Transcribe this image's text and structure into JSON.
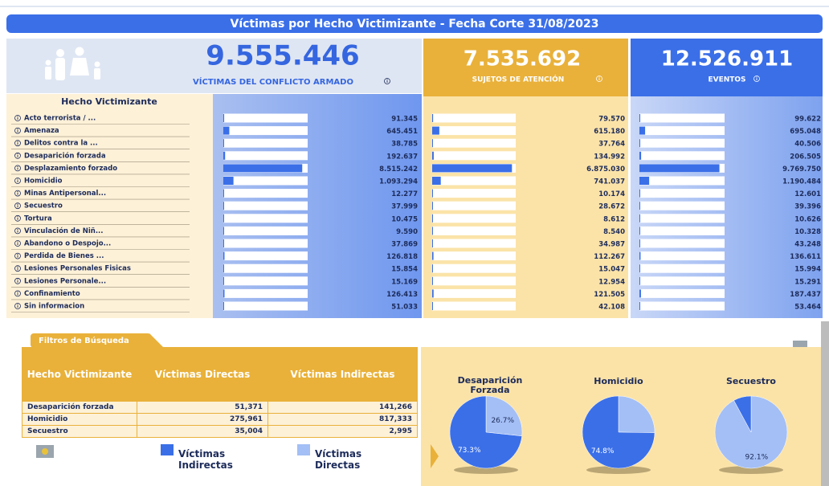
{
  "header": {
    "title": "Víctimas por Hecho Victimizante - Fecha Corte 31/08/2023"
  },
  "kpis": [
    {
      "value": "9.555.446",
      "label": "VÍCTIMAS DEL CONFLICTO ARMADO"
    },
    {
      "value": "7.535.692",
      "label": "SUJETOS DE ATENCIÓN"
    },
    {
      "value": "12.526.911",
      "label": "EVENTOS"
    }
  ],
  "chart_data": [
    {
      "type": "bar",
      "category_header": "Hecho Victimizante",
      "categories": [
        "Acto terrorista / ...",
        "Amenaza",
        "Delitos contra la ...",
        "Desaparición forzada",
        "Desplazamiento forzado",
        "Homicidio",
        "Minas Antipersonal...",
        "Secuestro",
        "Tortura",
        "Vinculación de Niñ...",
        "Abandono o Despojo...",
        "Perdida de Bienes ...",
        "Lesiones Personales Fisicas",
        "Lesiones Personale...",
        "Confinamiento",
        "Sin informacion"
      ],
      "values": [
        91345,
        645451,
        38785,
        192637,
        8515242,
        1093294,
        12277,
        37999,
        10475,
        9590,
        37869,
        126818,
        15854,
        15169,
        126413,
        51033
      ],
      "value_labels": [
        "91.345",
        "645.451",
        "38.785",
        "192.637",
        "8.515.242",
        "1.093.294",
        "12.277",
        "37.999",
        "10.475",
        "9.590",
        "37.869",
        "126.818",
        "15.854",
        "15.169",
        "126.413",
        "51.033"
      ],
      "xlim": [
        0,
        9100000
      ],
      "color": "#3a6fe8"
    },
    {
      "type": "bar",
      "values": [
        79570,
        615180,
        37764,
        134992,
        6875030,
        741037,
        10174,
        28672,
        8612,
        8540,
        34987,
        112267,
        15047,
        12954,
        121505,
        42108
      ],
      "value_labels": [
        "79.570",
        "615.180",
        "37.764",
        "134.992",
        "6.875.030",
        "741.037",
        "10.174",
        "28.672",
        "8.612",
        "8.540",
        "34.987",
        "112.267",
        "15.047",
        "12.954",
        "121.505",
        "42.108"
      ],
      "xlim": [
        0,
        7200000
      ],
      "color": "#3a6fe8"
    },
    {
      "type": "bar",
      "values": [
        99622,
        695048,
        40506,
        206505,
        9769750,
        1190484,
        12601,
        39396,
        10626,
        10328,
        43248,
        136611,
        15994,
        15291,
        187437,
        53464
      ],
      "value_labels": [
        "99.622",
        "695.048",
        "40.506",
        "206.505",
        "9.769.750",
        "1.190.484",
        "12.601",
        "39.396",
        "10.626",
        "10.328",
        "43.248",
        "136.611",
        "15.994",
        "15.291",
        "187.437",
        "53.464"
      ],
      "xlim": [
        0,
        10400000
      ],
      "color": "#3a6fe8"
    },
    {
      "type": "pie",
      "title": "Desaparición Forzada",
      "categories": [
        "Víctimas Indirectas",
        "Víctimas Directas"
      ],
      "colors": [
        "#3a6fe8",
        "#a4bff5"
      ],
      "values": [
        73.3,
        26.7
      ],
      "value_labels": [
        "73.3%",
        "26.7%"
      ]
    },
    {
      "type": "pie",
      "title": "Homicidio",
      "values": [
        74.8,
        25.2
      ],
      "value_labels": [
        "74.8%",
        null
      ]
    },
    {
      "type": "pie",
      "title": "Secuestro",
      "values": [
        7.9,
        92.1
      ],
      "value_labels": [
        null,
        "92.1%"
      ]
    }
  ],
  "table": {
    "tab": "Filtros de Búsqueda",
    "header": [
      "Hecho Victimizante",
      "Víctimas Directas",
      "Víctimas Indirectas"
    ],
    "rows": [
      [
        "Desaparición forzada",
        "51,371",
        "141,266"
      ],
      [
        "Homicidio",
        "275,961",
        "817,333"
      ],
      [
        "Secuestro",
        "35,004",
        "2,995"
      ]
    ]
  }
}
